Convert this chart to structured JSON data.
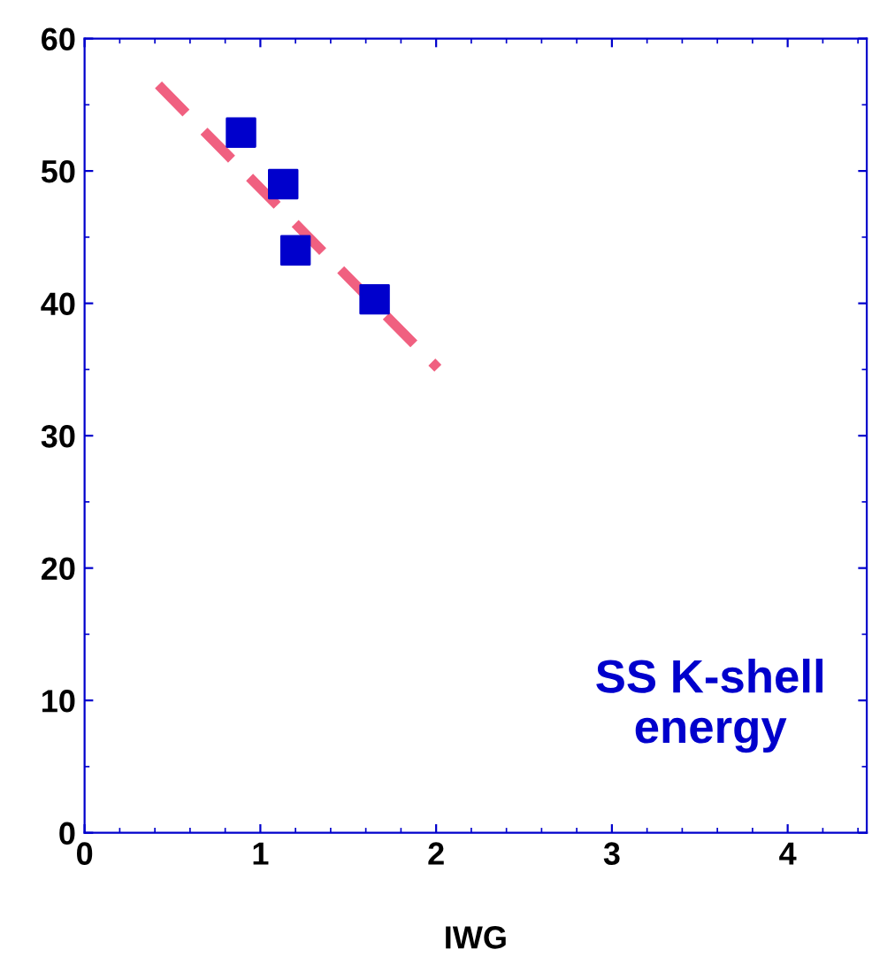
{
  "chart_data": {
    "type": "scatter",
    "xlabel": "IWG",
    "series": [
      {
        "color": "#0000cc",
        "marker": "square",
        "x": [
          0.89,
          1.13,
          1.2,
          1.65
        ],
        "values": [
          52.9,
          49.0,
          44.0,
          40.3
        ]
      },
      {
        "type": "line",
        "color": "#f06080",
        "marker": "none",
        "line_style": "dashed",
        "x": [
          0.42,
          2.01
        ],
        "values": [
          56.5,
          35.1
        ]
      }
    ],
    "annotations": [
      "SS K-shell\nenergy"
    ],
    "xlim": [
      0,
      4.45
    ],
    "ylim": [
      0,
      60
    ],
    "xticks": [
      0,
      1,
      2,
      3,
      4
    ],
    "yticks": [
      0,
      10,
      20,
      30,
      40,
      50,
      60
    ],
    "grid": false,
    "legend": false
  }
}
